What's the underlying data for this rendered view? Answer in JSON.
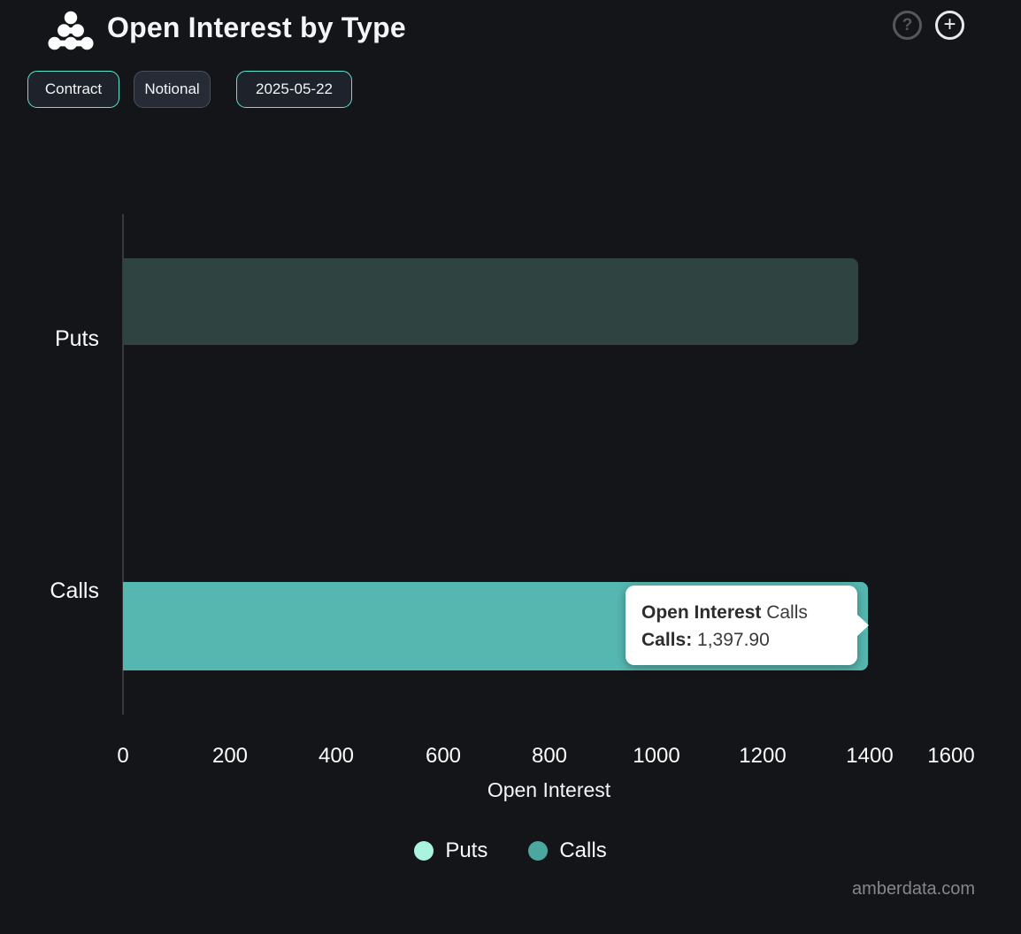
{
  "header": {
    "title": "Open Interest by Type",
    "help_glyph": "?",
    "add_glyph": "+"
  },
  "toolbar": {
    "buttons": [
      {
        "label": "Contract",
        "selected": true
      },
      {
        "label": "Notional",
        "selected": false
      },
      {
        "label": "2025-05-22",
        "selected": true
      }
    ]
  },
  "chart_data": {
    "type": "bar",
    "orientation": "horizontal",
    "title": "Open Interest by Type",
    "categories": [
      "Puts",
      "Calls"
    ],
    "values": [
      1380,
      1397.9
    ],
    "xlabel": "Open Interest",
    "xlim": [
      0,
      1600
    ],
    "xticks": [
      "0",
      "200",
      "400",
      "600",
      "800",
      "1000",
      "1200",
      "1400",
      "1600"
    ],
    "legend": [
      {
        "label": "Puts",
        "color": "#a9f3e0"
      },
      {
        "label": "Calls",
        "color": "#4aa8a0"
      }
    ],
    "bar_colors": {
      "puts_dimmed": "#2f4440",
      "calls": "#56b7b0"
    },
    "highlighted_series": "Calls",
    "grid": false,
    "legend_position": "bottom"
  },
  "tooltip": {
    "title_bold": "Open Interest",
    "title_rest": " Calls",
    "row_label": "Calls:",
    "row_value": " 1,397.90"
  },
  "footer": {
    "watermark": "amberdata.com"
  }
}
